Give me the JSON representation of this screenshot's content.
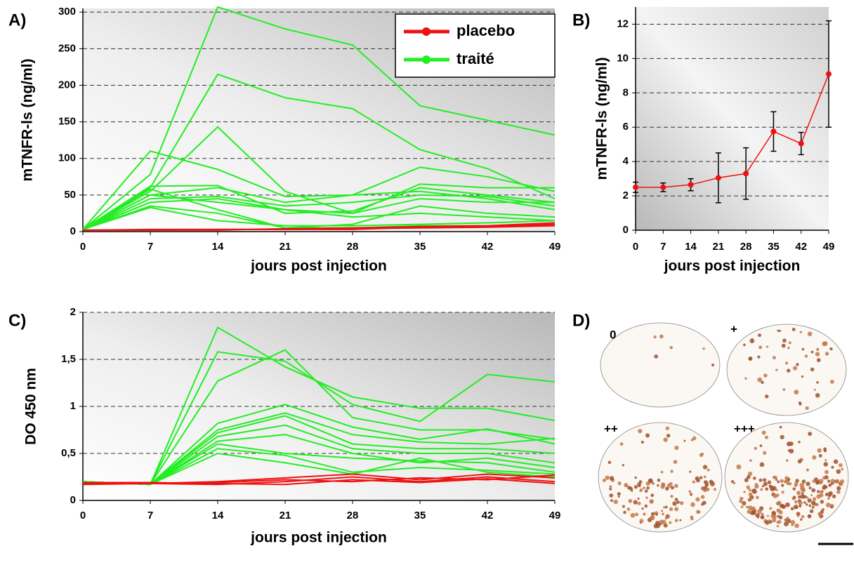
{
  "chart_data": [
    {
      "type": "line",
      "panel": "A)",
      "ylabel": "mTNFR-ls (ng/ml)",
      "xlabel": "jours post injection",
      "x": [
        0,
        7,
        14,
        21,
        28,
        35,
        42,
        49
      ],
      "xlim": [
        0,
        49
      ],
      "xticks": [
        0,
        7,
        14,
        21,
        28,
        35,
        42,
        49
      ],
      "ylim": [
        0,
        305
      ],
      "yticks": [
        0,
        50,
        100,
        150,
        200,
        250,
        300
      ],
      "grid": true,
      "legend_position": "upper right",
      "legend": [
        {
          "name": "placebo",
          "color": "#ee1111"
        },
        {
          "name": "traité",
          "color": "#22ee22"
        }
      ],
      "series": [
        {
          "color": "#22ee22",
          "values": [
            3,
            78,
            307,
            277,
            255,
            172,
            152,
            132
          ]
        },
        {
          "color": "#22ee22",
          "values": [
            3,
            60,
            215,
            183,
            168,
            112,
            86,
            45
          ]
        },
        {
          "color": "#22ee22",
          "values": [
            3,
            110,
            85,
            48,
            50,
            88,
            75,
            55
          ]
        },
        {
          "color": "#22ee22",
          "values": [
            3,
            55,
            143,
            55,
            25,
            65,
            60,
            60
          ]
        },
        {
          "color": "#22ee22",
          "values": [
            3,
            62,
            63,
            25,
            28,
            60,
            50,
            40
          ]
        },
        {
          "color": "#22ee22",
          "values": [
            3,
            50,
            60,
            40,
            50,
            55,
            45,
            30
          ]
        },
        {
          "color": "#22ee22",
          "values": [
            3,
            45,
            48,
            35,
            40,
            50,
            48,
            35
          ]
        },
        {
          "color": "#22ee22",
          "values": [
            3,
            40,
            45,
            30,
            25,
            45,
            40,
            40
          ]
        },
        {
          "color": "#22ee22",
          "values": [
            3,
            35,
            25,
            5,
            10,
            35,
            25,
            20
          ]
        },
        {
          "color": "#22ee22",
          "values": [
            3,
            33,
            15,
            8,
            8,
            10,
            12,
            15
          ]
        },
        {
          "color": "#22ee22",
          "values": [
            3,
            50,
            40,
            30,
            20,
            25,
            20,
            15
          ]
        },
        {
          "color": "#22ee22",
          "values": [
            3,
            58,
            30,
            5,
            5,
            8,
            8,
            10
          ]
        },
        {
          "color": "#ee1111",
          "values": [
            2,
            2,
            3,
            3,
            4,
            5,
            6,
            8
          ]
        },
        {
          "color": "#ee1111",
          "values": [
            2,
            2,
            2,
            4,
            5,
            7,
            8,
            12
          ]
        },
        {
          "color": "#ee1111",
          "values": [
            2,
            3,
            3,
            3,
            3,
            6,
            7,
            10
          ]
        }
      ]
    },
    {
      "type": "errorline",
      "panel": "B)",
      "ylabel": "mTNFR-ls (ng/ml)",
      "xlabel": "jours post injection",
      "x": [
        0,
        7,
        14,
        21,
        28,
        35,
        42,
        49
      ],
      "xlim": [
        0,
        49
      ],
      "xticks": [
        0,
        7,
        14,
        21,
        28,
        35,
        42,
        49
      ],
      "ylim": [
        0,
        13
      ],
      "yticks": [
        0,
        2,
        4,
        6,
        8,
        10,
        12
      ],
      "grid": true,
      "series": [
        {
          "color": "#ee1111",
          "values": [
            2.5,
            2.5,
            2.65,
            3.05,
            3.3,
            5.75,
            5.05,
            9.1
          ],
          "errors": [
            0.3,
            0.25,
            0.35,
            1.45,
            1.5,
            1.15,
            0.65,
            3.1
          ]
        }
      ]
    },
    {
      "type": "line",
      "panel": "C)",
      "ylabel": "DO 450 nm",
      "xlabel": "jours post injection",
      "x": [
        0,
        7,
        14,
        21,
        28,
        35,
        42,
        49
      ],
      "xlim": [
        0,
        49
      ],
      "xticks": [
        0,
        7,
        14,
        21,
        28,
        35,
        42,
        49
      ],
      "ylim": [
        0,
        2
      ],
      "yticks": [
        0,
        {
          "value": 0.5,
          "label": "0,5"
        },
        1,
        {
          "value": 1.5,
          "label": "1,5"
        },
        2
      ],
      "grid": true,
      "series": [
        {
          "color": "#22ee22",
          "values": [
            0.2,
            0.17,
            1.84,
            1.42,
            1.1,
            0.98,
            0.98,
            0.85
          ]
        },
        {
          "color": "#22ee22",
          "values": [
            0.2,
            0.17,
            1.58,
            1.48,
            1.02,
            0.84,
            1.34,
            1.26
          ]
        },
        {
          "color": "#22ee22",
          "values": [
            0.2,
            0.17,
            1.27,
            1.6,
            0.88,
            0.75,
            0.75,
            0.65
          ]
        },
        {
          "color": "#22ee22",
          "values": [
            0.2,
            0.17,
            0.82,
            1.02,
            0.78,
            0.65,
            0.76,
            0.6
          ]
        },
        {
          "color": "#22ee22",
          "values": [
            0.2,
            0.17,
            0.75,
            0.93,
            0.7,
            0.62,
            0.6,
            0.66
          ]
        },
        {
          "color": "#22ee22",
          "values": [
            0.2,
            0.17,
            0.72,
            0.9,
            0.6,
            0.55,
            0.55,
            0.5
          ]
        },
        {
          "color": "#22ee22",
          "values": [
            0.2,
            0.17,
            0.68,
            0.8,
            0.55,
            0.5,
            0.5,
            0.4
          ]
        },
        {
          "color": "#22ee22",
          "values": [
            0.2,
            0.17,
            0.63,
            0.7,
            0.5,
            0.4,
            0.45,
            0.35
          ]
        },
        {
          "color": "#22ee22",
          "values": [
            0.2,
            0.17,
            0.6,
            0.5,
            0.45,
            0.42,
            0.4,
            0.3
          ]
        },
        {
          "color": "#22ee22",
          "values": [
            0.2,
            0.17,
            0.55,
            0.48,
            0.3,
            0.35,
            0.32,
            0.28
          ]
        },
        {
          "color": "#22ee22",
          "values": [
            0.2,
            0.17,
            0.5,
            0.4,
            0.28,
            0.45,
            0.3,
            0.25
          ]
        },
        {
          "color": "#ee1111",
          "values": [
            0.18,
            0.18,
            0.2,
            0.24,
            0.28,
            0.22,
            0.28,
            0.24
          ]
        },
        {
          "color": "#ee1111",
          "values": [
            0.17,
            0.18,
            0.17,
            0.2,
            0.25,
            0.2,
            0.25,
            0.2
          ]
        },
        {
          "color": "#ee1111",
          "values": [
            0.19,
            0.19,
            0.18,
            0.17,
            0.22,
            0.19,
            0.23,
            0.18
          ]
        },
        {
          "color": "#ee1111",
          "values": [
            0.18,
            0.18,
            0.19,
            0.22,
            0.2,
            0.24,
            0.22,
            0.27
          ]
        }
      ]
    },
    {
      "type": "image",
      "panel": "D)",
      "labels": [
        "0",
        "+",
        "++",
        "+++"
      ]
    }
  ]
}
